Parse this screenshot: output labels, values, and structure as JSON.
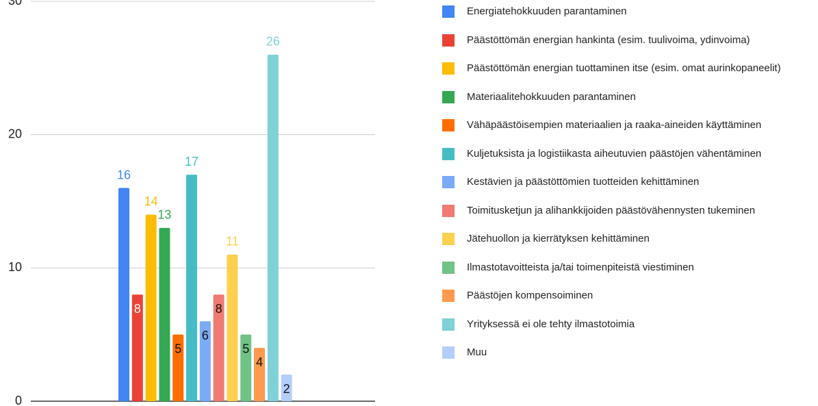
{
  "chart_data": {
    "type": "bar",
    "ylim": [
      0,
      30
    ],
    "yticks": [
      0,
      10,
      20,
      30
    ],
    "grid": true,
    "series": [
      {
        "name": "Energiatehokkuuden parantaminen",
        "color": "#4285f4",
        "values": [
          16
        ]
      },
      {
        "name": "Päästöttömän energian hankinta (esim. tuulivoima, ydinvoima)",
        "color": "#ea4335",
        "label_color": "#ffffff",
        "values": [
          8
        ]
      },
      {
        "name": "Päästöttömän energian tuottaminen itse (esim. omat aurinkopaneelit)",
        "color": "#fbbc04",
        "values": [
          14
        ]
      },
      {
        "name": "Materiaalitehokkuuden parantaminen",
        "color": "#34a853",
        "values": [
          13
        ]
      },
      {
        "name": "Vähäpäästöisempien materiaalien ja raaka-aineiden käyttäminen",
        "color": "#ff6d01",
        "values": [
          5
        ]
      },
      {
        "name": "Kuljetuksista ja logistiikasta aiheutuvien päästöjen vähentäminen",
        "color": "#46bdc6",
        "values": [
          17
        ]
      },
      {
        "name": "Kestävien ja päästöttömien tuotteiden kehittäminen",
        "color": "#7baaf7",
        "values": [
          6
        ]
      },
      {
        "name": "Toimitusketjun ja alihankkijoiden päästövähennysten tukeminen",
        "color": "#f07b72",
        "values": [
          8
        ]
      },
      {
        "name": "Jätehuollon ja kierrätyksen kehittäminen",
        "color": "#fcd04f",
        "values": [
          11
        ]
      },
      {
        "name": "Ilmastotavoitteista ja/tai toimenpiteistä viestiminen",
        "color": "#71c287",
        "values": [
          5
        ]
      },
      {
        "name": "Päästöjen kompensoiminen",
        "color": "#ff994d",
        "values": [
          4
        ]
      },
      {
        "name": "Yrityksessä ei ole tehty ilmastotoimia",
        "color": "#7ed1d7",
        "values": [
          26
        ]
      },
      {
        "name": "Muu",
        "color": "#b3cefb",
        "values": [
          2
        ]
      }
    ]
  }
}
